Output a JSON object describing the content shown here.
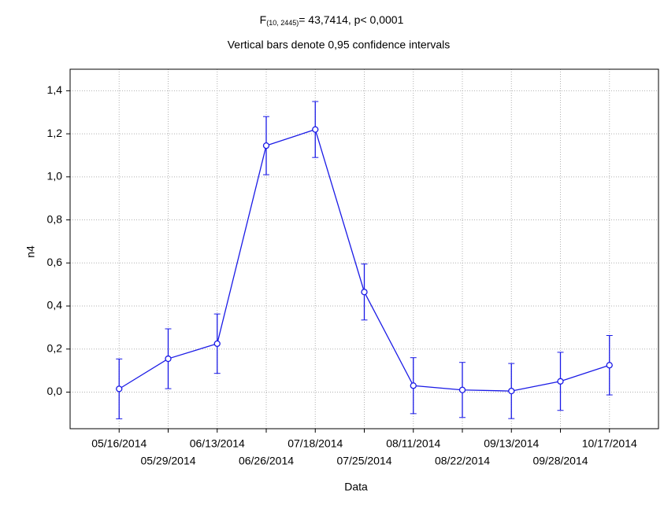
{
  "chart_data": {
    "type": "line",
    "title": {
      "main": "F",
      "sub": "(10, 2445)",
      "rest": "= 43,7414, p< 0,0001"
    },
    "subtitle": "Vertical bars denote 0,95 confidence intervals",
    "xlabel": "Data",
    "ylabel": "n4",
    "categories": [
      "05/16/2014",
      "05/29/2014",
      "06/13/2014",
      "06/26/2014",
      "07/18/2014",
      "07/25/2014",
      "08/11/2014",
      "08/22/2014",
      "09/13/2014",
      "09/28/2014",
      "10/17/2014"
    ],
    "series": [
      {
        "color": "#1a1ae6",
        "values": [
          0.015,
          0.155,
          0.225,
          1.145,
          1.22,
          0.465,
          0.03,
          0.01,
          0.005,
          0.05,
          0.125
        ],
        "errors": [
          0.139,
          0.139,
          0.138,
          0.135,
          0.13,
          0.13,
          0.13,
          0.128,
          0.128,
          0.135,
          0.138
        ]
      }
    ],
    "ylim": [
      -0.17,
      1.5
    ],
    "yticks": [
      {
        "value": 0,
        "label": "0,0"
      },
      {
        "value": 0.2,
        "label": "0,2"
      },
      {
        "value": 0.4,
        "label": "0,4"
      },
      {
        "value": 0.6,
        "label": "0,6"
      },
      {
        "value": 0.8,
        "label": "0,8"
      },
      {
        "value": 1,
        "label": "1,0"
      },
      {
        "value": 1.2,
        "label": "1,2"
      },
      {
        "value": 1.4,
        "label": "1,4"
      }
    ],
    "grid": true
  }
}
